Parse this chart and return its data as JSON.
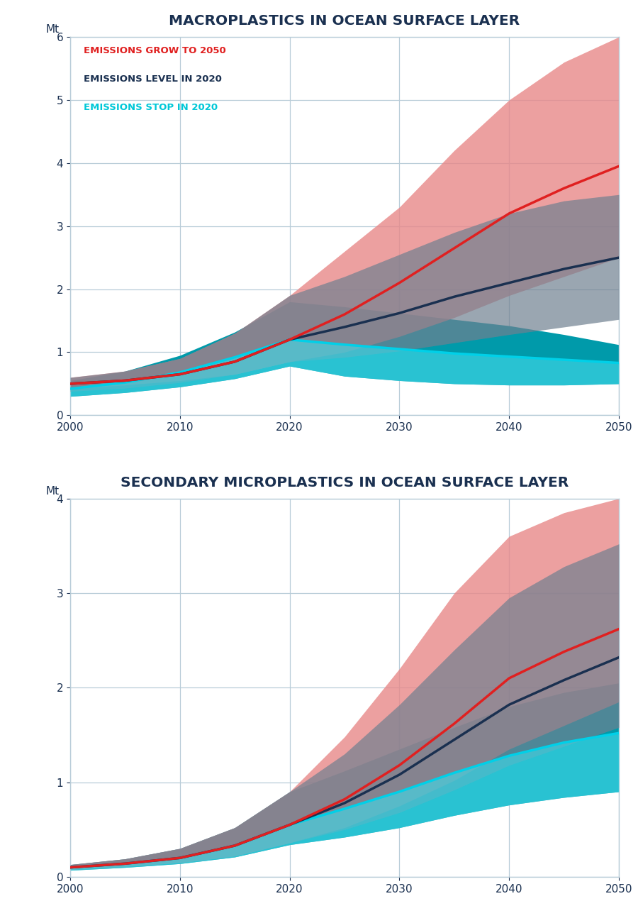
{
  "title1": "MACROPLASTICS IN OCEAN SURFACE LAYER",
  "title2": "SECONDARY MICROPLASTICS IN OCEAN SURFACE LAYER",
  "ylabel_unit": "Mt",
  "years": [
    2000,
    2005,
    2010,
    2015,
    2020,
    2025,
    2030,
    2035,
    2040,
    2045,
    2050
  ],
  "legend": [
    {
      "label": "EMISSIONS GROW TO 2050",
      "color": "#e02020"
    },
    {
      "label": "EMISSIONS LEVEL IN 2020",
      "color": "#1a3050"
    },
    {
      "label": "EMISSIONS STOP IN 2020",
      "color": "#00c8d8"
    }
  ],
  "macro": {
    "red_line": [
      0.5,
      0.55,
      0.65,
      0.85,
      1.2,
      1.6,
      2.1,
      2.65,
      3.2,
      3.6,
      3.95
    ],
    "red_upper": [
      0.6,
      0.7,
      0.9,
      1.3,
      1.9,
      2.6,
      3.3,
      4.2,
      5.0,
      5.6,
      6.0
    ],
    "red_lower": [
      0.42,
      0.48,
      0.55,
      0.65,
      0.85,
      1.0,
      1.25,
      1.55,
      1.9,
      2.2,
      2.5
    ],
    "navy_line": [
      0.5,
      0.55,
      0.65,
      0.85,
      1.2,
      1.4,
      1.62,
      1.88,
      2.1,
      2.32,
      2.5
    ],
    "navy_upper": [
      0.6,
      0.7,
      0.9,
      1.3,
      1.9,
      2.2,
      2.55,
      2.9,
      3.2,
      3.4,
      3.5
    ],
    "navy_lower": [
      0.38,
      0.43,
      0.52,
      0.65,
      0.85,
      0.92,
      1.02,
      1.15,
      1.28,
      1.4,
      1.52
    ],
    "cyan_line": [
      0.42,
      0.52,
      0.68,
      0.92,
      1.2,
      1.12,
      1.05,
      0.98,
      0.93,
      0.88,
      0.83
    ],
    "cyan_upper": [
      0.55,
      0.7,
      0.95,
      1.32,
      1.8,
      1.72,
      1.62,
      1.52,
      1.42,
      1.28,
      1.12
    ],
    "cyan_lower": [
      0.3,
      0.36,
      0.45,
      0.58,
      0.78,
      0.62,
      0.55,
      0.5,
      0.48,
      0.48,
      0.5
    ]
  },
  "micro": {
    "red_line": [
      0.1,
      0.14,
      0.2,
      0.33,
      0.55,
      0.82,
      1.18,
      1.62,
      2.1,
      2.38,
      2.62
    ],
    "red_upper": [
      0.13,
      0.19,
      0.3,
      0.52,
      0.9,
      1.48,
      2.2,
      3.0,
      3.6,
      3.85,
      4.0
    ],
    "red_lower": [
      0.08,
      0.11,
      0.15,
      0.22,
      0.36,
      0.52,
      0.75,
      1.02,
      1.35,
      1.6,
      1.85
    ],
    "navy_line": [
      0.1,
      0.14,
      0.2,
      0.33,
      0.55,
      0.78,
      1.08,
      1.45,
      1.82,
      2.08,
      2.32
    ],
    "navy_upper": [
      0.13,
      0.19,
      0.3,
      0.52,
      0.9,
      1.3,
      1.82,
      2.4,
      2.95,
      3.28,
      3.52
    ],
    "navy_lower": [
      0.08,
      0.11,
      0.15,
      0.22,
      0.36,
      0.5,
      0.68,
      0.92,
      1.18,
      1.38,
      1.58
    ],
    "cyan_line": [
      0.1,
      0.14,
      0.2,
      0.33,
      0.55,
      0.72,
      0.9,
      1.1,
      1.28,
      1.42,
      1.52
    ],
    "cyan_upper": [
      0.13,
      0.19,
      0.3,
      0.52,
      0.9,
      1.12,
      1.35,
      1.58,
      1.8,
      1.95,
      2.05
    ],
    "cyan_lower": [
      0.07,
      0.1,
      0.14,
      0.21,
      0.34,
      0.42,
      0.52,
      0.65,
      0.76,
      0.84,
      0.9
    ]
  },
  "macro_ylim": [
    0,
    6
  ],
  "micro_ylim": [
    0,
    4
  ],
  "macro_yticks": [
    0,
    1,
    2,
    3,
    4,
    5,
    6
  ],
  "micro_yticks": [
    0,
    1,
    2,
    3,
    4
  ],
  "xticks": [
    2000,
    2010,
    2020,
    2030,
    2040,
    2050
  ],
  "xlim": [
    2000,
    2050
  ],
  "background_color": "#ffffff",
  "title_color": "#1a3050",
  "grid_color": "#b8ccd8",
  "red_fill_color": "#e88888",
  "navy_fill_color": "#708090",
  "cyan_fill_color": "#009aaa",
  "cyan_light_fill_color": "#40d8e8",
  "red_line_color": "#e02020",
  "navy_line_color": "#1a3050",
  "cyan_line_color": "#00d0e8",
  "title_fontsize": 14.5,
  "label_fontsize": 9.5,
  "tick_fontsize": 11
}
